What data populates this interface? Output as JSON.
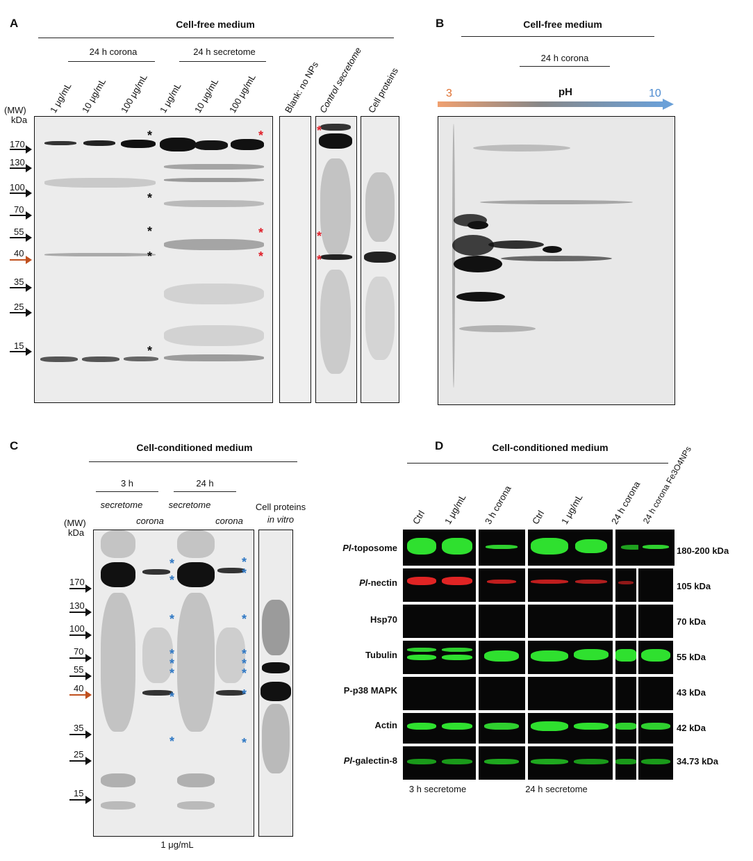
{
  "panelA": {
    "letter": "A",
    "title": "Cell-free medium",
    "group_corona": "24 h corona",
    "group_secretome": "24 h secretome",
    "lanes": [
      "1 μg/mL",
      "10 μg/mL",
      "100 μg/mL",
      "1 μg/mL",
      "10 μg/mL",
      "100 μg/mL",
      "Blank: no NPs",
      "Control secretome",
      "Cell proteins"
    ],
    "mw_header_1": "(MW)",
    "mw_header_2": "kDa",
    "mw_markers": [
      "170",
      "130",
      "100",
      "70",
      "55",
      "40",
      "35",
      "25",
      "15"
    ],
    "highlight_marker": "40",
    "star_colors": {
      "black": "#111111",
      "red": "#e0202a"
    }
  },
  "panelB": {
    "letter": "B",
    "title": "Cell-free medium",
    "subtitle": "24 h corona",
    "ph_label": "pH",
    "ph_low": "3",
    "ph_high": "10",
    "colors": {
      "low": "#e07030",
      "high": "#4a8ad0"
    }
  },
  "panelC": {
    "letter": "C",
    "title": "Cell-conditioned medium",
    "group_3h": "3 h",
    "group_24h": "24 h",
    "lane_labels": [
      "secretome",
      "corona",
      "secretome",
      "corona"
    ],
    "cell_proteins_1": "Cell proteins",
    "cell_proteins_2": "in vitro",
    "mw_header_1": "(MW)",
    "mw_header_2": "kDa",
    "mw_markers": [
      "170",
      "130",
      "100",
      "70",
      "55",
      "40",
      "35",
      "25",
      "15"
    ],
    "footer": "1 μg/mL",
    "star_color": "#2f78c4"
  },
  "panelD": {
    "letter": "D",
    "title": "Cell-conditioned medium",
    "columns": [
      "Ctrl",
      "1 μg/mL",
      "3 h corona",
      "Ctrl",
      "1 μg/mL",
      "24 h corona",
      "24 h corona Fe3O4NPs"
    ],
    "rows": [
      {
        "label_italic": "Pl",
        "label_rest": "-toposome",
        "kda": "180-200 kDa"
      },
      {
        "label_italic": "Pl",
        "label_rest": "-nectin",
        "kda": "105 kDa"
      },
      {
        "label_italic": "",
        "label_rest": "Hsp70",
        "kda": "70 kDa"
      },
      {
        "label_italic": "",
        "label_rest": "Tubulin",
        "kda": "55 kDa"
      },
      {
        "label_italic": "",
        "label_rest": "P-p38 MAPK",
        "kda": "43 kDa"
      },
      {
        "label_italic": "",
        "label_rest": "Actin",
        "kda": "42 kDa"
      },
      {
        "label_italic": "Pl",
        "label_rest": "-galectin-8",
        "kda": "34.73 kDa"
      }
    ],
    "footer_3h": "3 h secretome",
    "footer_24h": "24 h secretome",
    "colors": {
      "green": "#2fe02f",
      "red": "#e02424"
    }
  }
}
